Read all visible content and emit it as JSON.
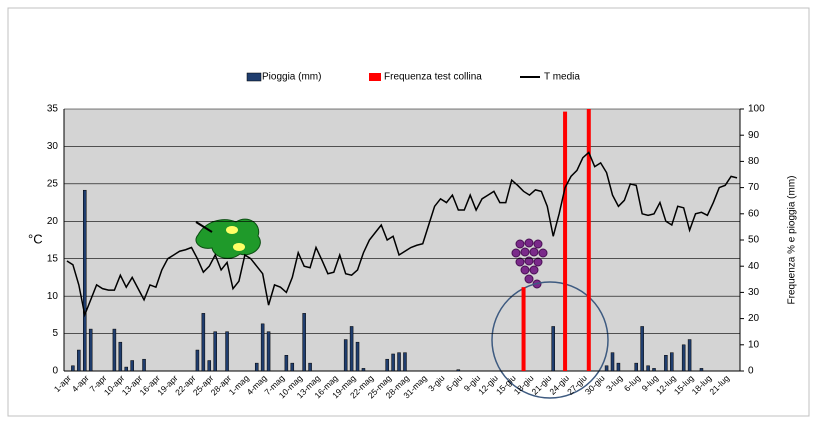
{
  "chart_data": {
    "type": "bar",
    "categories": [
      "1-apr",
      null,
      null,
      "4-apr",
      null,
      null,
      "7-apr",
      null,
      null,
      "10-apr",
      null,
      null,
      "13-apr",
      null,
      null,
      "16-apr",
      null,
      null,
      "19-apr",
      null,
      null,
      "22-apr",
      null,
      null,
      "25-apr",
      null,
      null,
      "28-apr",
      null,
      null,
      "1-mag",
      null,
      null,
      "4-mag",
      null,
      null,
      "7-mag",
      null,
      null,
      "10-mag",
      null,
      null,
      "13-mag",
      null,
      null,
      "16-mag",
      null,
      null,
      "19-mag",
      null,
      null,
      "22-mag",
      null,
      null,
      "25-mag",
      null,
      null,
      "28-mag",
      null,
      null,
      "31-mag",
      null,
      null,
      "3-giu",
      null,
      null,
      "6-giu",
      null,
      null,
      "9-giu",
      null,
      null,
      "12-giu",
      null,
      null,
      "15-giu",
      null,
      null,
      "18-giu",
      null,
      null,
      "21-giu",
      null,
      null,
      "24-giu",
      null,
      null,
      "27-giu",
      null,
      null,
      "30-giu",
      null,
      null,
      "3-lug",
      null,
      null,
      "6-lug",
      null,
      null,
      "9-lug",
      null,
      null,
      "12-lug",
      null,
      null,
      "15-lug",
      null,
      null,
      "18-lug",
      null,
      null,
      "21-lug",
      null,
      null
    ],
    "series": [
      {
        "name": "Pioggia (mm)",
        "type": "bar",
        "axis": "y2",
        "color": "#1f3d6e",
        "values": [
          0,
          2,
          8,
          69,
          16,
          0,
          0,
          0,
          16,
          11,
          1.5,
          4,
          0,
          4.5,
          0,
          0,
          0,
          0,
          0,
          0,
          0,
          0,
          8,
          22,
          4,
          15,
          0,
          15,
          0,
          0,
          0,
          0,
          3,
          18,
          15,
          0,
          0,
          6,
          3,
          0,
          22,
          3,
          0,
          0,
          0,
          0,
          0,
          12,
          17,
          11,
          1,
          0,
          0,
          0,
          4.5,
          6.5,
          7,
          7,
          0,
          0,
          0,
          0,
          0,
          0,
          0,
          0,
          0.5,
          0,
          0,
          0,
          0,
          0,
          0,
          0,
          0,
          0,
          0,
          0,
          0,
          0,
          0,
          0,
          17,
          0,
          0,
          0,
          0,
          0,
          0,
          0,
          0,
          2,
          7,
          3,
          0,
          0,
          3,
          17,
          2,
          1,
          0,
          6,
          7,
          0,
          10,
          12,
          0,
          1,
          0,
          0,
          0,
          0,
          0,
          0
        ]
      },
      {
        "name": "Frequenza test collina",
        "type": "bar",
        "axis": "y2",
        "color": "#ff0000",
        "values": [
          null,
          null,
          null,
          null,
          null,
          null,
          null,
          null,
          null,
          null,
          null,
          null,
          null,
          null,
          null,
          null,
          null,
          null,
          null,
          null,
          null,
          null,
          null,
          null,
          null,
          null,
          null,
          null,
          null,
          null,
          null,
          null,
          null,
          null,
          null,
          null,
          null,
          null,
          null,
          null,
          null,
          null,
          null,
          null,
          null,
          null,
          null,
          null,
          null,
          null,
          null,
          null,
          null,
          null,
          null,
          null,
          null,
          null,
          null,
          null,
          null,
          null,
          null,
          null,
          null,
          null,
          null,
          null,
          null,
          null,
          null,
          null,
          null,
          null,
          null,
          null,
          null,
          32,
          null,
          null,
          null,
          null,
          null,
          null,
          99,
          null,
          null,
          null,
          100,
          null,
          null,
          null,
          null,
          null,
          null,
          null,
          null,
          null,
          null,
          null,
          null,
          null,
          null,
          null,
          null,
          null,
          null,
          null,
          null,
          null,
          null,
          null,
          null,
          null
        ]
      },
      {
        "name": "T media",
        "type": "line",
        "color": "#000000",
        "values": [
          14.7,
          14.2,
          11.5,
          7.5,
          9.5,
          11.5,
          11,
          10.8,
          10.8,
          12.8,
          11.2,
          12.5,
          11,
          9.5,
          11.5,
          11.2,
          13.5,
          15,
          15.5,
          16,
          16.2,
          16.5,
          15,
          13.2,
          14,
          15.5,
          13.5,
          14.5,
          11,
          12,
          15.5,
          15,
          14,
          13,
          8.8,
          11.5,
          11.2,
          10.5,
          12.5,
          15.8,
          14,
          13.8,
          16.5,
          14.8,
          13,
          13.2,
          15.5,
          13,
          12.8,
          13.5,
          15.8,
          17.5,
          18.5,
          19.5,
          17.5,
          18,
          15.5,
          16,
          16.5,
          16.8,
          17,
          19.5,
          22,
          23,
          22.5,
          23.5,
          21.5,
          21.5,
          23.5,
          21.5,
          23,
          23.5,
          24,
          22.5,
          22.5,
          25.5,
          24.8,
          24,
          23.5,
          24.2,
          24,
          22,
          18,
          21,
          24.5,
          26,
          26.8,
          28.5,
          29.2,
          27.3,
          27.8,
          26.5,
          23.5,
          22,
          22.8,
          25,
          24.8,
          21,
          20.8,
          21,
          22.5,
          20,
          19.5,
          22,
          21.8,
          18.8,
          21,
          21.2,
          20.8,
          22.5,
          24.5,
          24.8,
          26,
          25.8
        ]
      }
    ],
    "ylabel": "°C",
    "y2label": "Frequenza % e pioggia (mm)",
    "ylim": [
      0,
      35
    ],
    "yticks": [
      0,
      5,
      10,
      15,
      20,
      25,
      30,
      35
    ],
    "y2lim": [
      0,
      100
    ],
    "y2ticks": [
      0,
      10,
      20,
      30,
      40,
      50,
      60,
      70,
      80,
      90,
      100
    ],
    "grid": true,
    "legend": "top"
  }
}
